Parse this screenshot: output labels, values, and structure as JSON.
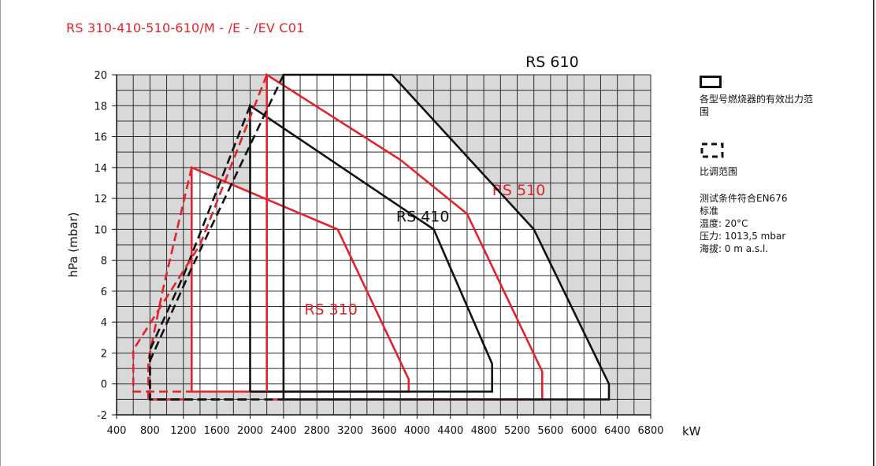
{
  "title": "RS 310-410-510-610/M - /E - /EV C01",
  "colors": {
    "red": "#e3232b",
    "black": "#111111",
    "grid": "#222222",
    "plot_bg": "#d9d9d9"
  },
  "legend": {
    "solid_label": "各型号燃烧器的有效出力范围",
    "dashed_label": "比调范围",
    "conditions": [
      "测试条件符合EN676",
      "标准",
      "温度: 20°C",
      "压力: 1013,5 mbar",
      "海拔: 0 m a.s.l."
    ]
  },
  "chart_data": {
    "type": "line",
    "xlabel": "kW",
    "ylabel": "hPa (mbar)",
    "xlim": [
      400,
      6800
    ],
    "ylim": [
      -2,
      20
    ],
    "x_ticks": [
      400,
      800,
      1200,
      1600,
      2000,
      2400,
      2800,
      3200,
      3600,
      4000,
      4400,
      4800,
      5200,
      5600,
      6000,
      6400,
      6800
    ],
    "y_ticks": [
      -2,
      0,
      2,
      4,
      6,
      8,
      10,
      12,
      14,
      16,
      18,
      20
    ],
    "grid": true,
    "legend_position": "right",
    "series": [
      {
        "name": "RS 310",
        "color": "#e3232b",
        "label_pos": [
          2650,
          4.5
        ],
        "working": [
          [
            1300,
            -0.5
          ],
          [
            1300,
            14
          ],
          [
            3050,
            10
          ],
          [
            3900,
            0.3
          ],
          [
            3900,
            -0.5
          ],
          [
            1300,
            -0.5
          ]
        ],
        "modulation": [
          [
            1300,
            14
          ],
          [
            950,
            6
          ],
          [
            780,
            1.5
          ],
          [
            780,
            -1
          ],
          [
            1300,
            -1
          ]
        ]
      },
      {
        "name": "RS 410",
        "color": "#111111",
        "label_pos": [
          3750,
          10.5
        ],
        "working": [
          [
            2000,
            -0.5
          ],
          [
            2000,
            18
          ],
          [
            4200,
            10
          ],
          [
            4900,
            1.3
          ],
          [
            4900,
            -0.5
          ],
          [
            2000,
            -0.5
          ]
        ],
        "modulation": [
          [
            2000,
            18
          ],
          [
            1200,
            7
          ],
          [
            800,
            2.2
          ],
          [
            800,
            -1
          ],
          [
            2000,
            -1
          ]
        ]
      },
      {
        "name": "RS 510",
        "color": "#e3232b",
        "label_pos": [
          4900,
          12.2
        ],
        "working": [
          [
            2200,
            -0.5
          ],
          [
            2200,
            20
          ],
          [
            3800,
            14.5
          ],
          [
            4600,
            11
          ],
          [
            5500,
            0.8
          ],
          [
            5500,
            -1
          ],
          [
            2200,
            -1
          ]
        ],
        "modulation": [
          [
            2200,
            20
          ],
          [
            1400,
            9
          ],
          [
            600,
            2.2
          ],
          [
            600,
            -0.5
          ],
          [
            1300,
            -0.5
          ]
        ]
      },
      {
        "name": "RS 610",
        "color": "#111111",
        "label_pos": [
          5300,
          20.5
        ],
        "working": [
          [
            2400,
            -1
          ],
          [
            2400,
            20
          ],
          [
            3700,
            20
          ],
          [
            5400,
            10
          ],
          [
            6300,
            0
          ],
          [
            6300,
            -1
          ],
          [
            2400,
            -1
          ]
        ],
        "modulation": [
          [
            2400,
            20
          ],
          [
            1300,
            7.5
          ],
          [
            800,
            1.5
          ],
          [
            800,
            -1
          ],
          [
            2400,
            -1
          ]
        ]
      }
    ]
  }
}
